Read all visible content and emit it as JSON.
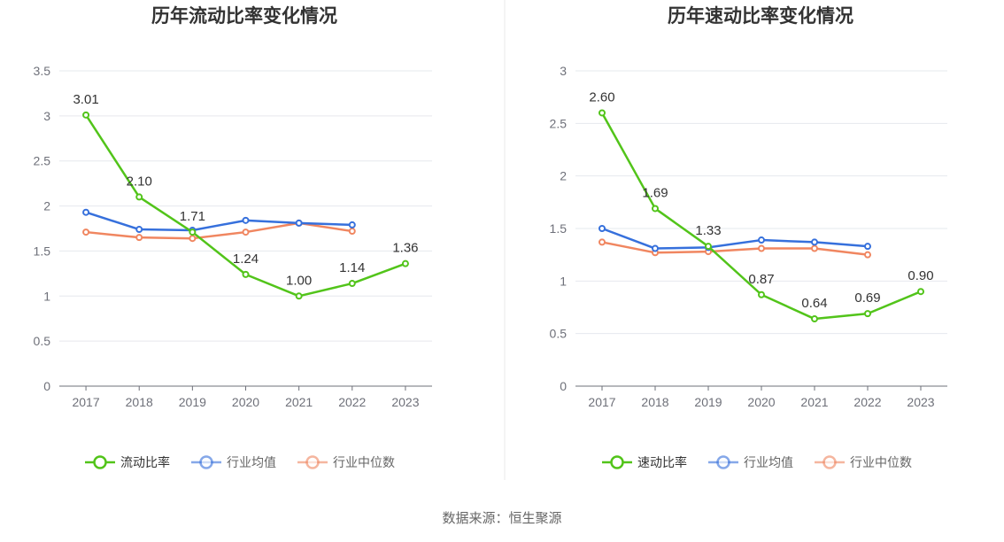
{
  "colors": {
    "main": "#52c41a",
    "avg": "#3670dc",
    "median": "#f08660",
    "grid": "#e6e8ee",
    "axis": "#6e7079",
    "divider": "#e8e8e8"
  },
  "chart_data": [
    {
      "type": "line",
      "title": "历年流动比率变化情况",
      "categories": [
        "2017",
        "2018",
        "2019",
        "2020",
        "2021",
        "2022",
        "2023"
      ],
      "ylim": [
        0,
        3.5
      ],
      "yticks": [
        "0",
        "0.5",
        "1",
        "1.5",
        "2",
        "2.5",
        "3",
        "3.5"
      ],
      "grid": true,
      "legend_position": "bottom",
      "series": [
        {
          "name": "流动比率",
          "values": [
            3.01,
            2.1,
            1.71,
            1.24,
            1.0,
            1.14,
            1.36
          ],
          "labels": [
            "3.01",
            "2.10",
            "1.71",
            "1.24",
            "1.00",
            "1.14",
            "1.36"
          ]
        },
        {
          "name": "行业均值",
          "values": [
            1.93,
            1.74,
            1.73,
            1.84,
            1.81,
            1.79,
            null
          ]
        },
        {
          "name": "行业中位数",
          "values": [
            1.71,
            1.65,
            1.64,
            1.71,
            1.81,
            1.72,
            null
          ]
        }
      ]
    },
    {
      "type": "line",
      "title": "历年速动比率变化情况",
      "categories": [
        "2017",
        "2018",
        "2019",
        "2020",
        "2021",
        "2022",
        "2023"
      ],
      "ylim": [
        0,
        3
      ],
      "yticks": [
        "0",
        "0.5",
        "1",
        "1.5",
        "2",
        "2.5",
        "3"
      ],
      "grid": true,
      "legend_position": "bottom",
      "series": [
        {
          "name": "速动比率",
          "values": [
            2.6,
            1.69,
            1.33,
            0.87,
            0.64,
            0.69,
            0.9
          ],
          "labels": [
            "2.60",
            "1.69",
            "1.33",
            "0.87",
            "0.64",
            "0.69",
            "0.90"
          ]
        },
        {
          "name": "行业均值",
          "values": [
            1.5,
            1.31,
            1.32,
            1.39,
            1.37,
            1.33,
            null
          ]
        },
        {
          "name": "行业中位数",
          "values": [
            1.37,
            1.27,
            1.28,
            1.31,
            1.31,
            1.25,
            null
          ]
        }
      ]
    }
  ],
  "source_text": "数据来源：恒生聚源"
}
